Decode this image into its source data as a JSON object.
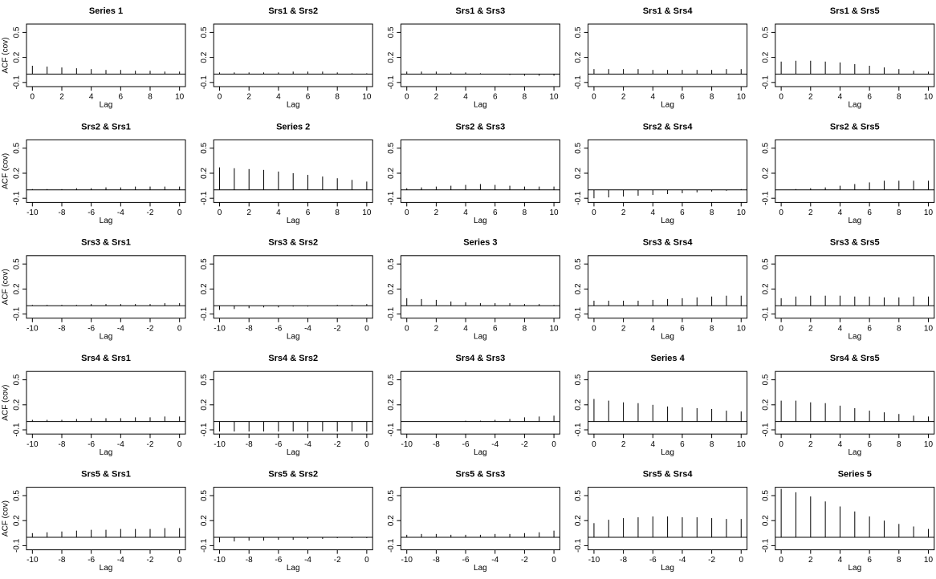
{
  "chart_data": [
    {
      "type": "acf",
      "title": "Series 1",
      "ylabel": "ACF (cov)",
      "xlabel": "Lag",
      "x": [
        0,
        1,
        2,
        3,
        4,
        5,
        6,
        7,
        8,
        9,
        10
      ],
      "values": [
        0.1,
        0.09,
        0.08,
        0.07,
        0.06,
        0.05,
        0.05,
        0.04,
        0.04,
        0.03,
        0.03
      ],
      "xlim": [
        -0.4,
        10.4
      ],
      "xticks": [
        0,
        2,
        4,
        6,
        8,
        10
      ],
      "ylim": [
        -0.15,
        0.6
      ],
      "yticks": [
        -0.1,
        0.2,
        0.5
      ]
    },
    {
      "type": "acf",
      "title": "Srs1 & Srs2",
      "xlabel": "Lag",
      "x": [
        0,
        1,
        2,
        3,
        4,
        5,
        6,
        7,
        8,
        9,
        10
      ],
      "values": [
        0.02,
        0.02,
        0.02,
        0.02,
        0.02,
        0.03,
        0.03,
        0.03,
        0.02,
        0.01,
        0.01
      ],
      "xlim": [
        -0.4,
        10.4
      ],
      "xticks": [
        0,
        2,
        4,
        6,
        8,
        10
      ],
      "ylim": [
        -0.15,
        0.6
      ],
      "yticks": [
        -0.1,
        0.2,
        0.5
      ]
    },
    {
      "type": "acf",
      "title": "Srs1 & Srs3",
      "xlabel": "Lag",
      "x": [
        0,
        1,
        2,
        3,
        4,
        5,
        6,
        7,
        8,
        9,
        10
      ],
      "values": [
        0.03,
        0.03,
        0.03,
        0.02,
        0.02,
        0.01,
        0,
        -0.01,
        -0.02,
        -0.02,
        -0.02
      ],
      "xlim": [
        -0.4,
        10.4
      ],
      "xticks": [
        0,
        2,
        4,
        6,
        8,
        10
      ],
      "ylim": [
        -0.15,
        0.6
      ],
      "yticks": [
        -0.1,
        0.2,
        0.5
      ]
    },
    {
      "type": "acf",
      "title": "Srs1 & Srs4",
      "xlabel": "Lag",
      "x": [
        0,
        1,
        2,
        3,
        4,
        5,
        6,
        7,
        8,
        9,
        10
      ],
      "values": [
        0.06,
        0.06,
        0.06,
        0.06,
        0.05,
        0.05,
        0.05,
        0.05,
        0.05,
        0.06,
        0.06
      ],
      "xlim": [
        -0.4,
        10.4
      ],
      "xticks": [
        0,
        2,
        4,
        6,
        8,
        10
      ],
      "ylim": [
        -0.15,
        0.6
      ],
      "yticks": [
        -0.1,
        0.2,
        0.5
      ]
    },
    {
      "type": "acf",
      "title": "Srs1 & Srs5",
      "xlabel": "Lag",
      "x": [
        0,
        1,
        2,
        3,
        4,
        5,
        6,
        7,
        8,
        9,
        10
      ],
      "values": [
        0.15,
        0.16,
        0.16,
        0.15,
        0.14,
        0.12,
        0.1,
        0.08,
        0.06,
        0.04,
        0.03
      ],
      "xlim": [
        -0.4,
        10.4
      ],
      "xticks": [
        0,
        2,
        4,
        6,
        8,
        10
      ],
      "ylim": [
        -0.15,
        0.6
      ],
      "yticks": [
        -0.1,
        0.2,
        0.5
      ]
    },
    {
      "type": "acf",
      "title": "Srs2 & Srs1",
      "ylabel": "ACF (cov)",
      "xlabel": "Lag",
      "x": [
        -10,
        -9,
        -8,
        -7,
        -6,
        -5,
        -4,
        -3,
        -2,
        -1,
        0
      ],
      "values": [
        0.01,
        0.01,
        0.01,
        0.02,
        0.02,
        0.03,
        0.03,
        0.04,
        0.04,
        0.04,
        0.04
      ],
      "xlim": [
        -10.4,
        0.4
      ],
      "xticks": [
        -10,
        -8,
        -6,
        -4,
        -2,
        0
      ],
      "ylim": [
        -0.15,
        0.6
      ],
      "yticks": [
        -0.1,
        0.2,
        0.5
      ]
    },
    {
      "type": "acf",
      "title": "Series 2",
      "xlabel": "Lag",
      "x": [
        0,
        1,
        2,
        3,
        4,
        5,
        6,
        7,
        8,
        9,
        10
      ],
      "values": [
        0.27,
        0.26,
        0.25,
        0.24,
        0.22,
        0.2,
        0.18,
        0.16,
        0.14,
        0.12,
        0.1
      ],
      "xlim": [
        -0.4,
        10.4
      ],
      "xticks": [
        0,
        2,
        4,
        6,
        8,
        10
      ],
      "ylim": [
        -0.15,
        0.6
      ],
      "yticks": [
        -0.1,
        0.2,
        0.5
      ]
    },
    {
      "type": "acf",
      "title": "Srs2 & Srs3",
      "xlabel": "Lag",
      "x": [
        0,
        1,
        2,
        3,
        4,
        5,
        6,
        7,
        8,
        9,
        10
      ],
      "values": [
        0.02,
        0.03,
        0.04,
        0.05,
        0.06,
        0.07,
        0.06,
        0.05,
        0.04,
        0.04,
        0.04
      ],
      "xlim": [
        -0.4,
        10.4
      ],
      "xticks": [
        0,
        2,
        4,
        6,
        8,
        10
      ],
      "ylim": [
        -0.15,
        0.6
      ],
      "yticks": [
        -0.1,
        0.2,
        0.5
      ]
    },
    {
      "type": "acf",
      "title": "Srs2 & Srs4",
      "xlabel": "Lag",
      "x": [
        0,
        1,
        2,
        3,
        4,
        5,
        6,
        7,
        8,
        9,
        10
      ],
      "values": [
        -0.1,
        -0.09,
        -0.08,
        -0.07,
        -0.06,
        -0.05,
        -0.04,
        -0.03,
        -0.02,
        -0.01,
        0.01
      ],
      "xlim": [
        -0.4,
        10.4
      ],
      "xticks": [
        0,
        2,
        4,
        6,
        8,
        10
      ],
      "ylim": [
        -0.15,
        0.6
      ],
      "yticks": [
        -0.1,
        0.2,
        0.5
      ]
    },
    {
      "type": "acf",
      "title": "Srs2 & Srs5",
      "xlabel": "Lag",
      "x": [
        0,
        1,
        2,
        3,
        4,
        5,
        6,
        7,
        8,
        9,
        10
      ],
      "values": [
        0,
        0.01,
        0.02,
        0.03,
        0.05,
        0.07,
        0.09,
        0.11,
        0.11,
        0.11,
        0.11
      ],
      "xlim": [
        -0.4,
        10.4
      ],
      "xticks": [
        0,
        2,
        4,
        6,
        8,
        10
      ],
      "ylim": [
        -0.15,
        0.6
      ],
      "yticks": [
        -0.1,
        0.2,
        0.5
      ]
    },
    {
      "type": "acf",
      "title": "Srs3 & Srs1",
      "ylabel": "ACF (cov)",
      "xlabel": "Lag",
      "x": [
        -10,
        -9,
        -8,
        -7,
        -6,
        -5,
        -4,
        -3,
        -2,
        -1,
        0
      ],
      "values": [
        0.01,
        0.01,
        0.01,
        0.01,
        0.02,
        0.02,
        0.02,
        0.02,
        0.02,
        0.03,
        0.03
      ],
      "xlim": [
        -10.4,
        0.4
      ],
      "xticks": [
        -10,
        -8,
        -6,
        -4,
        -2,
        0
      ],
      "ylim": [
        -0.15,
        0.6
      ],
      "yticks": [
        -0.1,
        0.2,
        0.5
      ]
    },
    {
      "type": "acf",
      "title": "Srs3 & Srs2",
      "xlabel": "Lag",
      "x": [
        -10,
        -9,
        -8,
        -7,
        -6,
        -5,
        -4,
        -3,
        -2,
        -1,
        0
      ],
      "values": [
        -0.05,
        -0.04,
        -0.03,
        -0.02,
        -0.02,
        -0.01,
        -0.01,
        0,
        0.01,
        0.01,
        0.02
      ],
      "xlim": [
        -10.4,
        0.4
      ],
      "xticks": [
        -10,
        -8,
        -6,
        -4,
        -2,
        0
      ],
      "ylim": [
        -0.15,
        0.6
      ],
      "yticks": [
        -0.1,
        0.2,
        0.5
      ]
    },
    {
      "type": "acf",
      "title": "Series 3",
      "xlabel": "Lag",
      "x": [
        0,
        1,
        2,
        3,
        4,
        5,
        6,
        7,
        8,
        9,
        10
      ],
      "values": [
        0.09,
        0.08,
        0.07,
        0.05,
        0.04,
        0.03,
        0.03,
        0.03,
        0.02,
        0.02,
        0.01
      ],
      "xlim": [
        -0.4,
        10.4
      ],
      "xticks": [
        0,
        2,
        4,
        6,
        8,
        10
      ],
      "ylim": [
        -0.15,
        0.6
      ],
      "yticks": [
        -0.1,
        0.2,
        0.5
      ]
    },
    {
      "type": "acf",
      "title": "Srs3 & Srs4",
      "xlabel": "Lag",
      "x": [
        0,
        1,
        2,
        3,
        4,
        5,
        6,
        7,
        8,
        9,
        10
      ],
      "values": [
        0.06,
        0.06,
        0.06,
        0.06,
        0.07,
        0.08,
        0.09,
        0.1,
        0.11,
        0.12,
        0.12
      ],
      "xlim": [
        -0.4,
        10.4
      ],
      "xticks": [
        0,
        2,
        4,
        6,
        8,
        10
      ],
      "ylim": [
        -0.15,
        0.6
      ],
      "yticks": [
        -0.1,
        0.2,
        0.5
      ]
    },
    {
      "type": "acf",
      "title": "Srs3 & Srs5",
      "xlabel": "Lag",
      "x": [
        0,
        1,
        2,
        3,
        4,
        5,
        6,
        7,
        8,
        9,
        10
      ],
      "values": [
        0.09,
        0.11,
        0.12,
        0.12,
        0.12,
        0.11,
        0.11,
        0.1,
        0.1,
        0.11,
        0.11
      ],
      "xlim": [
        -0.4,
        10.4
      ],
      "xticks": [
        0,
        2,
        4,
        6,
        8,
        10
      ],
      "ylim": [
        -0.15,
        0.6
      ],
      "yticks": [
        -0.1,
        0.2,
        0.5
      ]
    },
    {
      "type": "acf",
      "title": "Srs4 & Srs1",
      "ylabel": "ACF (cov)",
      "xlabel": "Lag",
      "x": [
        -10,
        -9,
        -8,
        -7,
        -6,
        -5,
        -4,
        -3,
        -2,
        -1,
        0
      ],
      "values": [
        0.02,
        0.02,
        0.02,
        0.03,
        0.04,
        0.04,
        0.04,
        0.05,
        0.05,
        0.06,
        0.06
      ],
      "xlim": [
        -10.4,
        0.4
      ],
      "xticks": [
        -10,
        -8,
        -6,
        -4,
        -2,
        0
      ],
      "ylim": [
        -0.15,
        0.6
      ],
      "yticks": [
        -0.1,
        0.2,
        0.5
      ]
    },
    {
      "type": "acf",
      "title": "Srs4 & Srs2",
      "xlabel": "Lag",
      "x": [
        -10,
        -9,
        -8,
        -7,
        -6,
        -5,
        -4,
        -3,
        -2,
        -1,
        0
      ],
      "values": [
        -0.12,
        -0.12,
        -0.12,
        -0.12,
        -0.12,
        -0.12,
        -0.12,
        -0.12,
        -0.12,
        -0.12,
        -0.12
      ],
      "xlim": [
        -10.4,
        0.4
      ],
      "xticks": [
        -10,
        -8,
        -6,
        -4,
        -2,
        0
      ],
      "ylim": [
        -0.15,
        0.6
      ],
      "yticks": [
        -0.1,
        0.2,
        0.5
      ]
    },
    {
      "type": "acf",
      "title": "Srs4 & Srs3",
      "xlabel": "Lag",
      "x": [
        -10,
        -9,
        -8,
        -7,
        -6,
        -5,
        -4,
        -3,
        -2,
        -1,
        0
      ],
      "values": [
        0,
        0,
        0,
        0,
        0.01,
        0.01,
        0.02,
        0.03,
        0.05,
        0.06,
        0.07
      ],
      "xlim": [
        -10.4,
        0.4
      ],
      "xticks": [
        -10,
        -8,
        -6,
        -4,
        -2,
        0
      ],
      "ylim": [
        -0.15,
        0.6
      ],
      "yticks": [
        -0.1,
        0.2,
        0.5
      ]
    },
    {
      "type": "acf",
      "title": "Series 4",
      "xlabel": "Lag",
      "x": [
        0,
        1,
        2,
        3,
        4,
        5,
        6,
        7,
        8,
        9,
        10
      ],
      "values": [
        0.27,
        0.25,
        0.23,
        0.22,
        0.2,
        0.18,
        0.17,
        0.16,
        0.15,
        0.13,
        0.12
      ],
      "xlim": [
        -0.4,
        10.4
      ],
      "xticks": [
        0,
        2,
        4,
        6,
        8,
        10
      ],
      "ylim": [
        -0.15,
        0.6
      ],
      "yticks": [
        -0.1,
        0.2,
        0.5
      ]
    },
    {
      "type": "acf",
      "title": "Srs4 & Srs5",
      "xlabel": "Lag",
      "x": [
        0,
        1,
        2,
        3,
        4,
        5,
        6,
        7,
        8,
        9,
        10
      ],
      "values": [
        0.25,
        0.25,
        0.23,
        0.22,
        0.19,
        0.16,
        0.13,
        0.11,
        0.09,
        0.07,
        0.06
      ],
      "xlim": [
        -0.4,
        10.4
      ],
      "xticks": [
        0,
        2,
        4,
        6,
        8,
        10
      ],
      "ylim": [
        -0.15,
        0.6
      ],
      "yticks": [
        -0.1,
        0.2,
        0.5
      ]
    },
    {
      "type": "acf",
      "title": "Srs5 & Srs1",
      "ylabel": "ACF (cov)",
      "xlabel": "Lag",
      "x": [
        -10,
        -9,
        -8,
        -7,
        -6,
        -5,
        -4,
        -3,
        -2,
        -1,
        0
      ],
      "values": [
        0.05,
        0.06,
        0.07,
        0.08,
        0.09,
        0.09,
        0.1,
        0.1,
        0.1,
        0.11,
        0.11
      ],
      "xlim": [
        -10.4,
        0.4
      ],
      "xticks": [
        -10,
        -8,
        -6,
        -4,
        -2,
        0
      ],
      "ylim": [
        -0.15,
        0.6
      ],
      "yticks": [
        -0.1,
        0.2,
        0.5
      ]
    },
    {
      "type": "acf",
      "title": "Srs5 & Srs2",
      "xlabel": "Lag",
      "x": [
        -10,
        -9,
        -8,
        -7,
        -6,
        -5,
        -4,
        -3,
        -2,
        -1,
        0
      ],
      "values": [
        -0.06,
        -0.05,
        -0.04,
        -0.04,
        -0.03,
        -0.03,
        -0.02,
        -0.02,
        -0.01,
        -0.01,
        -0.01
      ],
      "xlim": [
        -10.4,
        0.4
      ],
      "xticks": [
        -10,
        -8,
        -6,
        -4,
        -2,
        0
      ],
      "ylim": [
        -0.15,
        0.6
      ],
      "yticks": [
        -0.1,
        0.2,
        0.5
      ]
    },
    {
      "type": "acf",
      "title": "Srs5 & Srs3",
      "xlabel": "Lag",
      "x": [
        -10,
        -9,
        -8,
        -7,
        -6,
        -5,
        -4,
        -3,
        -2,
        -1,
        0
      ],
      "values": [
        0.03,
        0.04,
        0.04,
        0.03,
        0.03,
        0.03,
        0.04,
        0.04,
        0.05,
        0.06,
        0.08
      ],
      "xlim": [
        -10.4,
        0.4
      ],
      "xticks": [
        -10,
        -8,
        -6,
        -4,
        -2,
        0
      ],
      "ylim": [
        -0.15,
        0.6
      ],
      "yticks": [
        -0.1,
        0.2,
        0.5
      ]
    },
    {
      "type": "acf",
      "title": "Srs5 & Srs4",
      "xlabel": "Lag",
      "x": [
        -10,
        -9,
        -8,
        -7,
        -6,
        -5,
        -4,
        -3,
        -2,
        -1,
        0
      ],
      "values": [
        0.17,
        0.21,
        0.23,
        0.24,
        0.25,
        0.25,
        0.24,
        0.24,
        0.23,
        0.22,
        0.22
      ],
      "xlim": [
        -10.4,
        0.4
      ],
      "xticks": [
        -10,
        -8,
        -6,
        -4,
        -2,
        0
      ],
      "ylim": [
        -0.15,
        0.6
      ],
      "yticks": [
        -0.1,
        0.2,
        0.5
      ]
    },
    {
      "type": "acf",
      "title": "Series 5",
      "xlabel": "Lag",
      "x": [
        0,
        1,
        2,
        3,
        4,
        5,
        6,
        7,
        8,
        9,
        10
      ],
      "values": [
        0.58,
        0.54,
        0.49,
        0.43,
        0.37,
        0.31,
        0.25,
        0.2,
        0.16,
        0.13,
        0.1
      ],
      "xlim": [
        -0.4,
        10.4
      ],
      "xticks": [
        0,
        2,
        4,
        6,
        8,
        10
      ],
      "ylim": [
        -0.15,
        0.6
      ],
      "yticks": [
        -0.1,
        0.2,
        0.5
      ]
    }
  ]
}
